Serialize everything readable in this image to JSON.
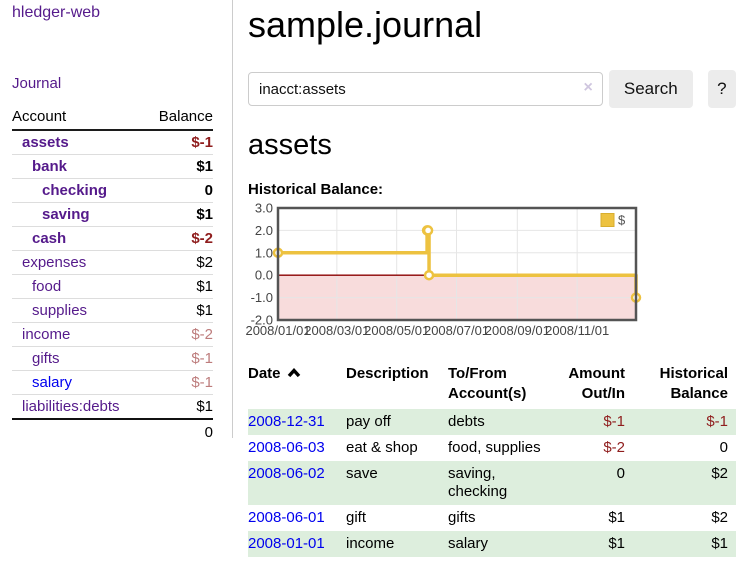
{
  "colors": {
    "link_purple": "#551a8b",
    "link_blue": "#0000ee",
    "negative_strong": "#8f1d1d",
    "negative_soft": "#bd7c7c",
    "row_stripe_green": "#ddeedd",
    "chart_line_gold": "#edc240",
    "chart_negative_pink": "#f8dcdc",
    "chart_zero_line": "#8b0000",
    "chart_border": "#545454",
    "chart_grid": "#e6e6e6"
  },
  "sidebar": {
    "app_title": "hledger-web",
    "journal_label": "Journal",
    "accounts_table": {
      "col_account": "Account",
      "col_balance": "Balance",
      "rows": [
        {
          "name": "assets",
          "balance": "$-1",
          "depth": 0,
          "bold": true,
          "neg": "strong"
        },
        {
          "name": "bank",
          "balance": "$1",
          "depth": 1,
          "bold": true,
          "neg": "none"
        },
        {
          "name": "checking",
          "balance": "0",
          "depth": 2,
          "bold": true,
          "neg": "none"
        },
        {
          "name": "saving",
          "balance": "$1",
          "depth": 2,
          "bold": true,
          "neg": "none"
        },
        {
          "name": "cash",
          "balance": "$-2",
          "depth": 1,
          "bold": true,
          "neg": "strong"
        },
        {
          "name": "expenses",
          "balance": "$2",
          "depth": 0,
          "bold": false,
          "neg": "none"
        },
        {
          "name": "food",
          "balance": "$1",
          "depth": 1,
          "bold": false,
          "neg": "none"
        },
        {
          "name": "supplies",
          "balance": "$1",
          "depth": 1,
          "bold": false,
          "neg": "none"
        },
        {
          "name": "income",
          "balance": "$-2",
          "depth": 0,
          "bold": false,
          "neg": "soft"
        },
        {
          "name": "gifts",
          "balance": "$-1",
          "depth": 1,
          "bold": false,
          "neg": "soft"
        },
        {
          "name": "salary",
          "balance": "$-1",
          "depth": 1,
          "bold": false,
          "neg": "soft",
          "link_color": "blue"
        },
        {
          "name": "liabilities:debts",
          "balance": "$1",
          "depth": 0,
          "bold": false,
          "neg": "none"
        }
      ],
      "total": "0"
    }
  },
  "main": {
    "title": "sample.journal",
    "search": {
      "value": "inacct:assets",
      "clear_icon": "×",
      "search_label": "Search",
      "help_label": "?"
    },
    "account_heading": "assets",
    "chart_label": "Historical Balance:"
  },
  "chart_data": {
    "type": "line",
    "step": true,
    "title": "Historical Balance",
    "series": [
      {
        "name": "$",
        "color": "#edc240",
        "points": [
          [
            "2008-01-01",
            1
          ],
          [
            "2008-06-01",
            2
          ],
          [
            "2008-06-02",
            2
          ],
          [
            "2008-06-03",
            0
          ],
          [
            "2008-12-31",
            -1
          ]
        ]
      }
    ],
    "xlim": [
      "2008-01-01",
      "2008-12-31"
    ],
    "ylim": [
      -2,
      3
    ],
    "y_ticks": [
      {
        "value": 3,
        "label": "3.0"
      },
      {
        "value": 2,
        "label": "2.0"
      },
      {
        "value": 1,
        "label": "1.0"
      },
      {
        "value": 0,
        "label": "0.0"
      },
      {
        "value": -1,
        "label": "-1.0"
      },
      {
        "value": -2,
        "label": "-2.0"
      }
    ],
    "x_ticks": [
      {
        "date": "2008-01-01",
        "label": "2008/01/01"
      },
      {
        "date": "2008-03-01",
        "label": "2008/03/01"
      },
      {
        "date": "2008-05-01",
        "label": "2008/05/01"
      },
      {
        "date": "2008-07-01",
        "label": "2008/07/01"
      },
      {
        "date": "2008-09-01",
        "label": "2008/09/01"
      },
      {
        "date": "2008-11-01",
        "label": "2008/11/01"
      }
    ],
    "grid": true,
    "legend_position": "top-right",
    "negative_region_color": "#f8dcdc",
    "zero_line_color": "#8b0000"
  },
  "register_table": {
    "headers": {
      "date": "Date",
      "description": "Description",
      "accounts": "To/From Account(s)",
      "amount": "Amount Out/In",
      "balance": "Historical Balance"
    },
    "rows": [
      {
        "date": "2008-12-31",
        "description": "pay off",
        "accounts": "debts",
        "amount": "$-1",
        "amount_neg": true,
        "balance": "$-1",
        "balance_neg": true
      },
      {
        "date": "2008-06-03",
        "description": "eat & shop",
        "accounts": "food, supplies",
        "amount": "$-2",
        "amount_neg": true,
        "balance": "0",
        "balance_neg": false
      },
      {
        "date": "2008-06-02",
        "description": "save",
        "accounts": "saving, checking",
        "amount": "0",
        "amount_neg": false,
        "balance": "$2",
        "balance_neg": false
      },
      {
        "date": "2008-06-01",
        "description": "gift",
        "accounts": "gifts",
        "amount": "$1",
        "amount_neg": false,
        "balance": "$2",
        "balance_neg": false
      },
      {
        "date": "2008-01-01",
        "description": "income",
        "accounts": "salary",
        "amount": "$1",
        "amount_neg": false,
        "balance": "$1",
        "balance_neg": false
      }
    ]
  }
}
